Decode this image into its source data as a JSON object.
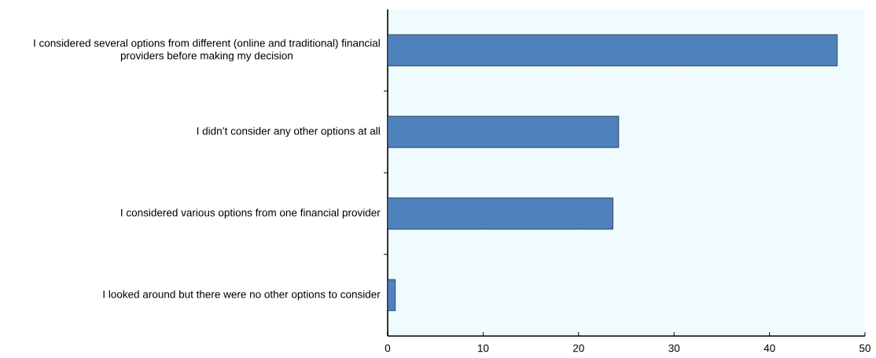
{
  "chart_data": {
    "type": "bar",
    "orientation": "horizontal",
    "categories": [
      "I considered several options from different (online and traditional) financial providers before making my decision",
      "I didn’t consider any other options at all",
      "I considered various options from one financial provider",
      "I looked around but there were no other options to consider"
    ],
    "values": [
      47.1,
      24.2,
      23.6,
      0.8
    ],
    "color": "#4f81bd",
    "xlim": [
      0,
      50
    ],
    "xticks": [
      0,
      10,
      20,
      30,
      40,
      50
    ],
    "grid": "x"
  }
}
